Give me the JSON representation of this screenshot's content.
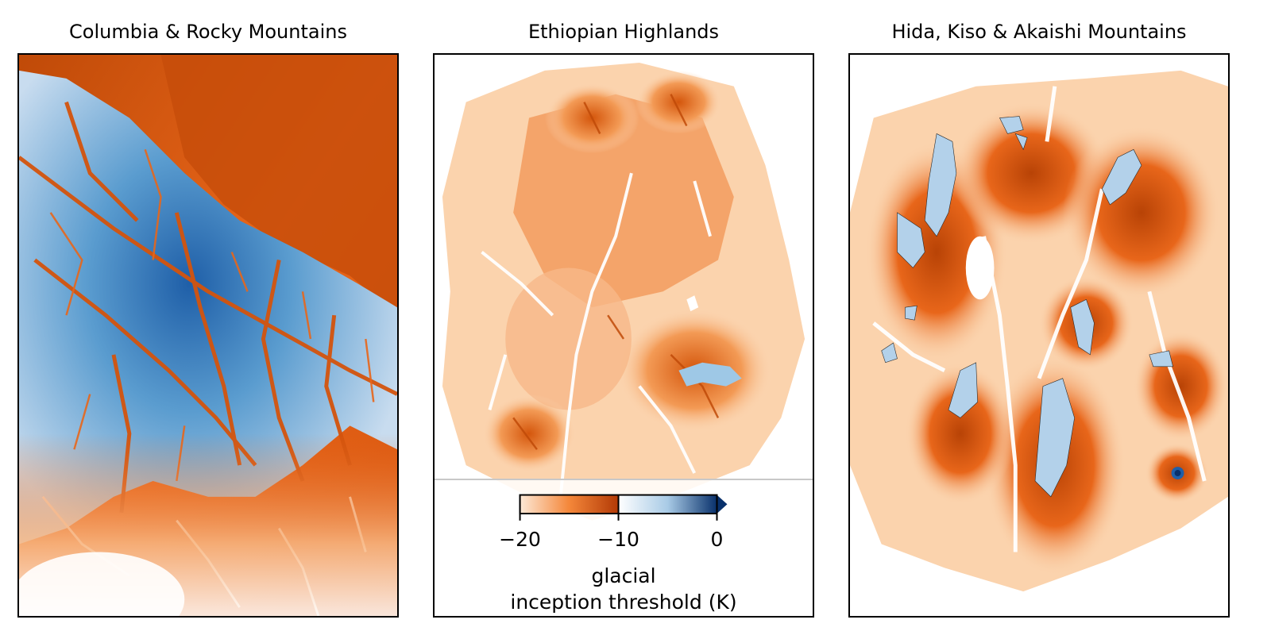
{
  "panels": [
    {
      "title": "Columbia & Rocky Mountains"
    },
    {
      "title": "Ethiopian Highlands"
    },
    {
      "title": "Hida, Kiso & Akaishi Mountains"
    }
  ],
  "colorbar": {
    "ticks": [
      {
        "value": -20,
        "label": "−20"
      },
      {
        "value": -10,
        "label": "−10"
      },
      {
        "value": 0,
        "label": "0"
      }
    ],
    "vmin": -20,
    "vmax": 0,
    "extend": "max",
    "label_line1": "glacial",
    "label_line2": "inception threshold (K)",
    "colors": {
      "low": "#fde9d7",
      "mid": "#f4873a",
      "high_orange": "#b33a06",
      "white": "#ffffff",
      "light_blue": "#a9cbe6",
      "dark_blue": "#08306b"
    }
  },
  "colors": {
    "orange_dark": "#b84306",
    "orange": "#e8661a",
    "orange_light": "#f5a66b",
    "peach": "#fbd6b3",
    "ice_light": "#c6dbef",
    "ice": "#6baed6",
    "ice_dark": "#2166ac"
  }
}
